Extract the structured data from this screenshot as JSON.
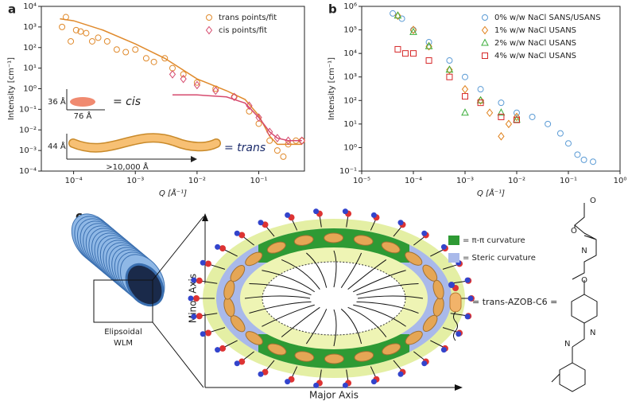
{
  "chart_data": [
    {
      "type": "scatter",
      "panel_label": "a",
      "xlabel": "Q [Å⁻¹]",
      "ylabel": "Intensity [cm⁻¹]",
      "xscale": "log",
      "yscale": "log",
      "xlim": [
        3e-05,
        0.55
      ],
      "ylim": [
        0.0001,
        10000
      ],
      "xticks": [
        {
          "value": 0.0001,
          "label": "10⁻⁴"
        },
        {
          "value": 0.001,
          "label": "10⁻³"
        },
        {
          "value": 0.01,
          "label": "10⁻²"
        },
        {
          "value": 0.1,
          "label": "10⁻¹"
        }
      ],
      "yticks": [
        {
          "value": 0.0001,
          "label": "10⁻⁴"
        },
        {
          "value": 0.001,
          "label": "10⁻³"
        },
        {
          "value": 0.01,
          "label": "10⁻²"
        },
        {
          "value": 0.1,
          "label": "10⁻¹"
        },
        {
          "value": 1,
          "label": "10⁰"
        },
        {
          "value": 10,
          "label": "10¹"
        },
        {
          "value": 100,
          "label": "10²"
        },
        {
          "value": 1000,
          "label": "10³"
        },
        {
          "value": 10000,
          "label": "10⁴"
        }
      ],
      "legend": "upper right",
      "series": [
        {
          "name": "trans points/fit",
          "color": "#e08a2c",
          "marker": "circle",
          "x": [
            6.5e-05,
            7.5e-05,
            9e-05,
            0.00011,
            0.00013,
            0.00016,
            0.0002,
            0.00025,
            0.00035,
            0.0005,
            0.0007,
            0.001,
            0.0015,
            0.002,
            0.003,
            0.004,
            0.006,
            0.01,
            0.02,
            0.04,
            0.07,
            0.1,
            0.15,
            0.2,
            0.25,
            0.3,
            0.4,
            0.5
          ],
          "values": [
            1000,
            3000,
            200,
            700,
            600,
            500,
            200,
            300,
            200,
            80,
            60,
            80,
            30,
            20,
            30,
            10,
            5,
            2,
            1,
            0.4,
            0.08,
            0.02,
            0.003,
            0.001,
            0.0005,
            0.002,
            0.003,
            0.003
          ],
          "fit": {
            "x": [
              6e-05,
              0.0001,
              0.0003,
              0.001,
              0.003,
              0.01,
              0.03,
              0.06,
              0.1,
              0.15,
              0.2,
              0.3,
              0.5
            ],
            "values": [
              2500,
              2000,
              700,
              150,
              30,
              3,
              0.8,
              0.3,
              0.05,
              0.005,
              0.002,
              0.002,
              0.002
            ]
          }
        },
        {
          "name": "cis points/fit",
          "color": "#d64a6e",
          "marker": "diamond",
          "x": [
            0.004,
            0.006,
            0.01,
            0.02,
            0.04,
            0.07,
            0.1,
            0.15,
            0.2,
            0.3,
            0.5
          ],
          "values": [
            5,
            3,
            1.5,
            0.8,
            0.4,
            0.15,
            0.04,
            0.008,
            0.004,
            0.003,
            0.003
          ],
          "fit": {
            "x": [
              0.004,
              0.01,
              0.03,
              0.06,
              0.1,
              0.15,
              0.2,
              0.3,
              0.5
            ],
            "values": [
              0.5,
              0.5,
              0.4,
              0.2,
              0.04,
              0.008,
              0.004,
              0.003,
              0.003
            ]
          }
        }
      ],
      "annotations": [
        "36 Å",
        "76 Å",
        "= cis",
        "44 Å",
        ">10,000 Å",
        "= trans"
      ]
    },
    {
      "type": "scatter",
      "panel_label": "b",
      "xlabel": "Q [Å⁻¹]",
      "ylabel": "Intensity [cm⁻¹]",
      "xscale": "log",
      "yscale": "log",
      "xlim": [
        1e-05,
        1
      ],
      "ylim": [
        0.1,
        1000000
      ],
      "xticks": [
        {
          "value": 1e-05,
          "label": "10⁻⁵"
        },
        {
          "value": 0.0001,
          "label": "10⁻⁴"
        },
        {
          "value": 0.001,
          "label": "10⁻³"
        },
        {
          "value": 0.01,
          "label": "10⁻²"
        },
        {
          "value": 0.1,
          "label": "10⁻¹"
        },
        {
          "value": 1,
          "label": "10⁰"
        }
      ],
      "yticks": [
        {
          "value": 0.1,
          "label": "10⁻¹"
        },
        {
          "value": 1,
          "label": "10⁰"
        },
        {
          "value": 10,
          "label": "10¹"
        },
        {
          "value": 100,
          "label": "10²"
        },
        {
          "value": 1000,
          "label": "10³"
        },
        {
          "value": 10000,
          "label": "10⁴"
        },
        {
          "value": 100000,
          "label": "10⁵"
        },
        {
          "value": 1000000,
          "label": "10⁶"
        }
      ],
      "legend": "upper right",
      "series": [
        {
          "name": "0% w/w NaCl SANS/USANS",
          "color": "#5b9bd5",
          "marker": "circle",
          "x": [
            4e-05,
            6e-05,
            0.0001,
            0.0002,
            0.0005,
            0.001,
            0.002,
            0.005,
            0.01,
            0.02,
            0.04,
            0.07,
            0.1,
            0.15,
            0.2,
            0.3
          ],
          "values": [
            500000,
            300000,
            100000,
            30000,
            5000,
            1000,
            300,
            80,
            30,
            20,
            10,
            4,
            1.5,
            0.5,
            0.3,
            0.25
          ]
        },
        {
          "name": "1% w/w NaCl USANS",
          "color": "#e0801a",
          "marker": "diamond",
          "x": [
            5e-05,
            0.0001,
            0.0002,
            0.0005,
            0.001,
            0.002,
            0.003,
            0.005,
            0.007,
            0.01
          ],
          "values": [
            400000,
            100000,
            20000,
            2000,
            300,
            100,
            30,
            3,
            10,
            20
          ]
        },
        {
          "name": "2% w/w NaCl USANS",
          "color": "#3cae3c",
          "marker": "triangle",
          "x": [
            5e-05,
            0.0001,
            0.0002,
            0.0005,
            0.001,
            0.002,
            0.005,
            0.01
          ],
          "values": [
            400000,
            80000,
            20000,
            2000,
            30,
            100,
            30,
            15
          ]
        },
        {
          "name": "4% w/w NaCl USANS",
          "color": "#d62728",
          "marker": "square",
          "x": [
            5e-05,
            7e-05,
            0.0001,
            0.0002,
            0.0005,
            0.001,
            0.002,
            0.005,
            0.01
          ],
          "values": [
            15000,
            10000,
            10000,
            5000,
            1000,
            150,
            80,
            20,
            15
          ]
        }
      ]
    }
  ],
  "diagram": {
    "panel_label": "c",
    "wlm_label": [
      "Elipsoidal",
      "WLM"
    ],
    "minor_axis": "Minor Axis",
    "major_axis": "Major Axis",
    "legend": [
      "= π-π curvature",
      "= Steric curvature"
    ],
    "molecule_label": "= trans-AZOB-C6 =",
    "atoms": [
      "O",
      "O",
      "N",
      "O",
      "N",
      "N"
    ]
  }
}
